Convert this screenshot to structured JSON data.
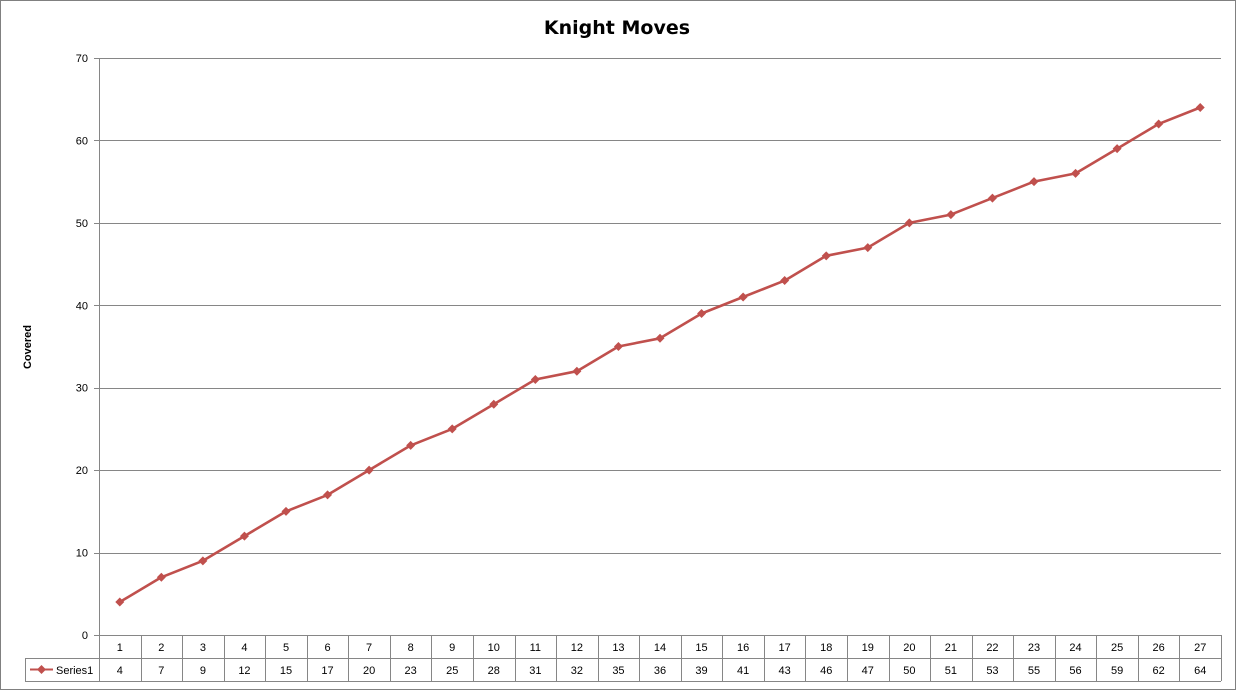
{
  "chart_data": {
    "type": "line",
    "title": "Knight Moves",
    "xlabel": "",
    "ylabel": "Covered",
    "ylim": [
      0,
      70
    ],
    "yticks": [
      0,
      10,
      20,
      30,
      40,
      50,
      60,
      70
    ],
    "grid": true,
    "legend_placement": "data-table",
    "categories": [
      "1",
      "2",
      "3",
      "4",
      "5",
      "6",
      "7",
      "8",
      "9",
      "10",
      "11",
      "12",
      "13",
      "14",
      "15",
      "16",
      "17",
      "18",
      "19",
      "20",
      "21",
      "22",
      "23",
      "24",
      "25",
      "26",
      "27"
    ],
    "series": [
      {
        "name": "Series1",
        "color": "#C0504D",
        "marker": "diamond",
        "values": [
          4,
          7,
          9,
          12,
          15,
          17,
          20,
          23,
          25,
          28,
          31,
          32,
          35,
          36,
          39,
          41,
          43,
          46,
          47,
          50,
          51,
          53,
          55,
          56,
          59,
          62,
          64
        ]
      }
    ]
  }
}
